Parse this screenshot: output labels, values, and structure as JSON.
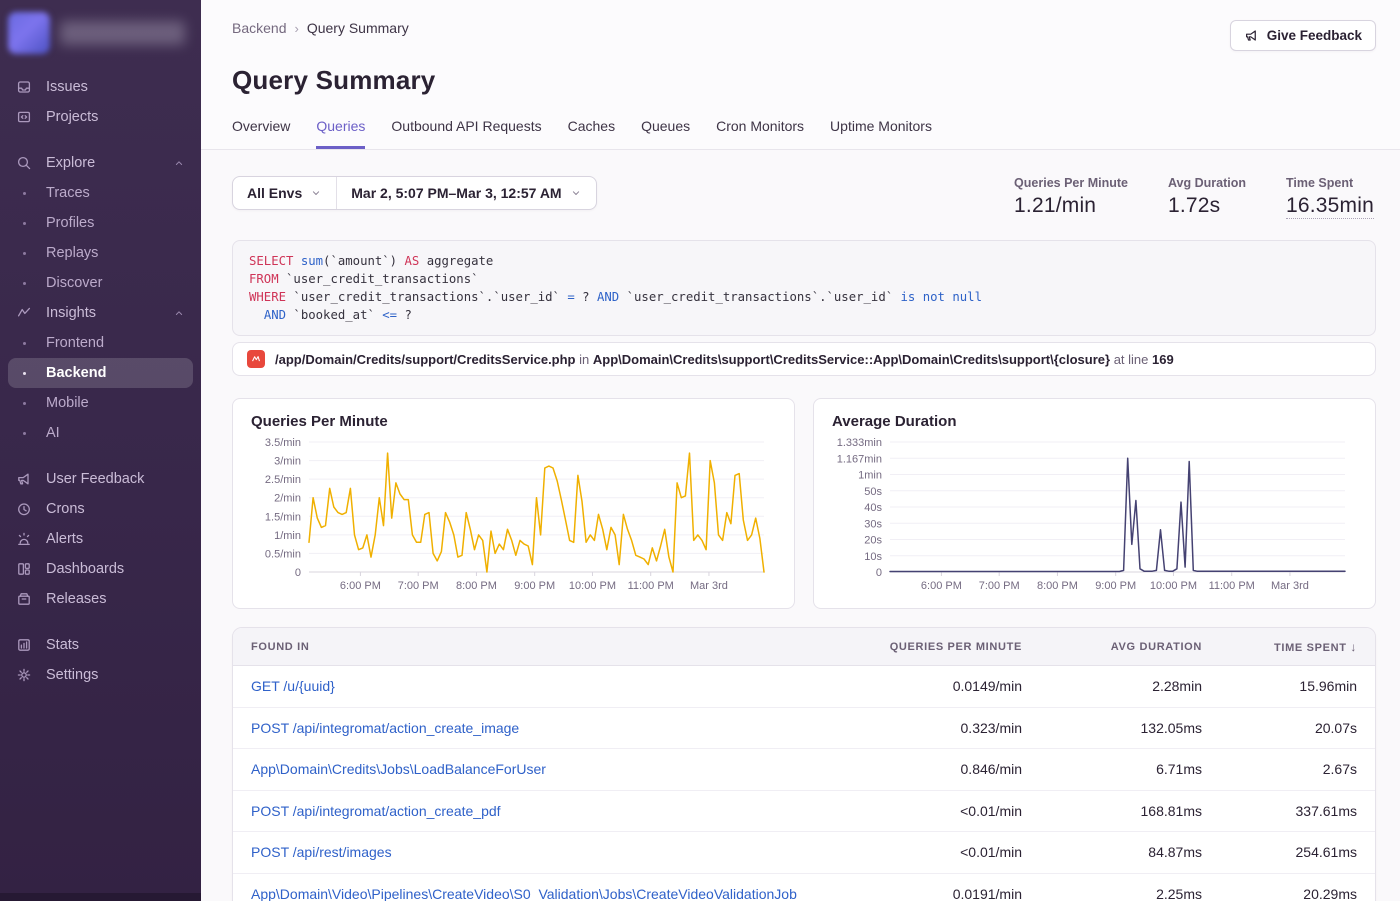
{
  "sidebar": {
    "items": [
      {
        "label": "Issues"
      },
      {
        "label": "Projects"
      },
      {
        "label": "Explore"
      },
      {
        "label": "Traces"
      },
      {
        "label": "Profiles"
      },
      {
        "label": "Replays"
      },
      {
        "label": "Discover"
      },
      {
        "label": "Insights"
      },
      {
        "label": "Frontend"
      },
      {
        "label": "Backend"
      },
      {
        "label": "Mobile"
      },
      {
        "label": "AI"
      },
      {
        "label": "User Feedback"
      },
      {
        "label": "Crons"
      },
      {
        "label": "Alerts"
      },
      {
        "label": "Dashboards"
      },
      {
        "label": "Releases"
      },
      {
        "label": "Stats"
      },
      {
        "label": "Settings"
      }
    ],
    "active_item": "Backend"
  },
  "header": {
    "breadcrumb": {
      "parent": "Backend",
      "separator": "›",
      "current": "Query Summary"
    },
    "title": "Query Summary",
    "feedback_button": "Give Feedback",
    "tabs": [
      {
        "label": "Overview"
      },
      {
        "label": "Queries"
      },
      {
        "label": "Outbound API Requests"
      },
      {
        "label": "Caches"
      },
      {
        "label": "Queues"
      },
      {
        "label": "Cron Monitors"
      },
      {
        "label": "Uptime Monitors"
      }
    ],
    "active_tab": "Queries"
  },
  "filters": {
    "environment": "All Envs",
    "date_range": "Mar 2, 5:07 PM–Mar 3, 12:57 AM"
  },
  "stats": [
    {
      "label": "Queries Per Minute",
      "value": "1.21/min"
    },
    {
      "label": "Avg Duration",
      "value": "1.72s"
    },
    {
      "label": "Time Spent",
      "value": "16.35min"
    }
  ],
  "sql": {
    "lines": [
      [
        {
          "t": "SELECT",
          "c": "kw"
        },
        {
          "t": " ",
          "c": "tx"
        },
        {
          "t": "sum",
          "c": "op"
        },
        {
          "t": "(`amount`) ",
          "c": "tx"
        },
        {
          "t": "AS",
          "c": "kw"
        },
        {
          "t": " aggregate",
          "c": "tx"
        }
      ],
      [
        {
          "t": "FROM",
          "c": "kw"
        },
        {
          "t": " `user_credit_transactions`",
          "c": "tx"
        }
      ],
      [
        {
          "t": "WHERE",
          "c": "kw"
        },
        {
          "t": " `user_credit_transactions`.`user_id` ",
          "c": "tx"
        },
        {
          "t": "=",
          "c": "op"
        },
        {
          "t": " ? ",
          "c": "tx"
        },
        {
          "t": "AND",
          "c": "op"
        },
        {
          "t": " `user_credit_transactions`.`user_id` ",
          "c": "tx"
        },
        {
          "t": "is not null",
          "c": "op"
        }
      ],
      [
        {
          "t": "  ",
          "c": "tx"
        },
        {
          "t": "AND",
          "c": "op"
        },
        {
          "t": " `booked_at` ",
          "c": "tx"
        },
        {
          "t": "<=",
          "c": "op"
        },
        {
          "t": " ?",
          "c": "tx"
        }
      ]
    ]
  },
  "source": {
    "file": "/app/Domain/Credits/support/CreditsService.php",
    "in_label": "in",
    "symbol": "App\\Domain\\Credits\\support\\CreditsService::App\\Domain\\Credits\\support\\{closure}",
    "at_label": "at line",
    "line": "169"
  },
  "chart_data": [
    {
      "type": "line",
      "title": "Queries Per Minute",
      "color": "#f0b000",
      "ylim": [
        0,
        3.5
      ],
      "yticks": [
        {
          "v": 0,
          "label": "0"
        },
        {
          "v": 0.5,
          "label": "0.5/min"
        },
        {
          "v": 1,
          "label": "1/min"
        },
        {
          "v": 1.5,
          "label": "1.5/min"
        },
        {
          "v": 2,
          "label": "2/min"
        },
        {
          "v": 2.5,
          "label": "2.5/min"
        },
        {
          "v": 3,
          "label": "3/min"
        },
        {
          "v": 3.5,
          "label": "3.5/min"
        }
      ],
      "xticks": [
        {
          "pos": 0.113,
          "label": "6:00 PM"
        },
        {
          "pos": 0.24,
          "label": "7:00 PM"
        },
        {
          "pos": 0.368,
          "label": "8:00 PM"
        },
        {
          "pos": 0.496,
          "label": "9:00 PM"
        },
        {
          "pos": 0.623,
          "label": "10:00 PM"
        },
        {
          "pos": 0.751,
          "label": "11:00 PM"
        },
        {
          "pos": 0.879,
          "label": "Mar 3rd"
        }
      ],
      "values": [
        0.8,
        2.0,
        1.45,
        1.2,
        1.25,
        2.25,
        1.75,
        1.6,
        1.55,
        1.6,
        2.25,
        1.0,
        0.6,
        0.65,
        1.0,
        0.4,
        1.0,
        2.0,
        1.25,
        3.2,
        1.45,
        2.4,
        2.1,
        1.95,
        1.95,
        1.0,
        0.8,
        0.8,
        1.55,
        1.6,
        0.5,
        0.3,
        0.55,
        1.6,
        1.35,
        1.0,
        0.4,
        0.45,
        1.6,
        1.15,
        0.6,
        1.0,
        0.85,
        0.0,
        1.1,
        0.5,
        0.75,
        0.6,
        1.15,
        0.85,
        0.45,
        0.85,
        0.75,
        0.7,
        0.2,
        2.0,
        1.0,
        2.8,
        2.85,
        2.8,
        2.45,
        1.95,
        1.4,
        0.85,
        0.8,
        2.6,
        1.9,
        0.8,
        1.0,
        0.85,
        1.55,
        1.15,
        0.6,
        1.2,
        1.0,
        0.2,
        1.55,
        1.15,
        0.85,
        0.45,
        0.4,
        0.35,
        0.2,
        0.65,
        0.3,
        0.7,
        1.15,
        0.4,
        0.0,
        2.4,
        2.0,
        2.05,
        3.2,
        0.85,
        1.0,
        0.85,
        0.6,
        3.0,
        2.4,
        1.0,
        0.85,
        1.6,
        1.3,
        2.6,
        2.65,
        1.4,
        0.85,
        1.0,
        1.45,
        0.9,
        0.0
      ]
    },
    {
      "type": "line",
      "title": "Average Duration",
      "color": "#454272",
      "ylim": [
        0,
        80
      ],
      "unit": "seconds",
      "yticks": [
        {
          "v": 0,
          "label": "0"
        },
        {
          "v": 10,
          "label": "10s"
        },
        {
          "v": 20,
          "label": "20s"
        },
        {
          "v": 30,
          "label": "30s"
        },
        {
          "v": 40,
          "label": "40s"
        },
        {
          "v": 50,
          "label": "50s"
        },
        {
          "v": 60,
          "label": "1min"
        },
        {
          "v": 70,
          "label": "1.167min"
        },
        {
          "v": 80,
          "label": "1.333min"
        }
      ],
      "xticks": [
        {
          "pos": 0.113,
          "label": "6:00 PM"
        },
        {
          "pos": 0.24,
          "label": "7:00 PM"
        },
        {
          "pos": 0.368,
          "label": "8:00 PM"
        },
        {
          "pos": 0.496,
          "label": "9:00 PM"
        },
        {
          "pos": 0.623,
          "label": "10:00 PM"
        },
        {
          "pos": 0.751,
          "label": "11:00 PM"
        },
        {
          "pos": 0.879,
          "label": "Mar 3rd"
        }
      ],
      "values": [
        0.3,
        0.3,
        0.3,
        0.3,
        0.3,
        0.3,
        0.3,
        0.3,
        0.3,
        0.3,
        0.3,
        0.3,
        0.3,
        0.3,
        0.3,
        0.3,
        0.3,
        0.3,
        0.3,
        0.3,
        0.3,
        0.3,
        0.3,
        0.3,
        0.3,
        0.3,
        0.3,
        0.3,
        0.3,
        0.3,
        0.3,
        0.3,
        0.3,
        0.3,
        0.3,
        0.3,
        0.3,
        0.3,
        0.3,
        0.3,
        0.3,
        0.3,
        0.3,
        0.3,
        0.3,
        0.3,
        0.3,
        0.3,
        0.3,
        0.3,
        0.3,
        0.3,
        0.3,
        0.3,
        0.3,
        0.3,
        0.3,
        1.0,
        70,
        17,
        44,
        2,
        0.5,
        0.5,
        0.5,
        1.0,
        26,
        1.0,
        0.5,
        0.5,
        2.0,
        43,
        3.0,
        68,
        1.0,
        0.4,
        0.4,
        0.4,
        0.4,
        0.4,
        0.4,
        0.4,
        0.4,
        0.4,
        0.4,
        0.4,
        0.4,
        0.4,
        0.4,
        0.4,
        0.4,
        0.4,
        0.4,
        0.4,
        0.4,
        0.4,
        0.4,
        0.4,
        0.4,
        0.4,
        0.4,
        0.4,
        0.4,
        0.4,
        0.4,
        0.4,
        0.4,
        0.4,
        0.4,
        0.4,
        0.4,
        0.4
      ]
    }
  ],
  "table": {
    "columns": [
      "Found In",
      "Queries Per Minute",
      "Avg Duration",
      "Time Spent"
    ],
    "sort_arrow": "↓",
    "rows": [
      {
        "found_in": "GET /u/{uuid}",
        "qpm": "0.0149/min",
        "avg": "2.28min",
        "time": "15.96min"
      },
      {
        "found_in": "POST /api/integromat/action_create_image",
        "qpm": "0.323/min",
        "avg": "132.05ms",
        "time": "20.07s"
      },
      {
        "found_in": "App\\Domain\\Credits\\Jobs\\LoadBalanceForUser",
        "qpm": "0.846/min",
        "avg": "6.71ms",
        "time": "2.67s"
      },
      {
        "found_in": "POST /api/integromat/action_create_pdf",
        "qpm": "<0.01/min",
        "avg": "168.81ms",
        "time": "337.61ms"
      },
      {
        "found_in": "POST /api/rest/images",
        "qpm": "<0.01/min",
        "avg": "84.87ms",
        "time": "254.61ms"
      },
      {
        "found_in": "App\\Domain\\Video\\Pipelines\\CreateVideo\\S0_Validation\\Jobs\\CreateVideoValidationJob",
        "qpm": "0.0191/min",
        "avg": "2.25ms",
        "time": "20.29ms"
      }
    ]
  }
}
